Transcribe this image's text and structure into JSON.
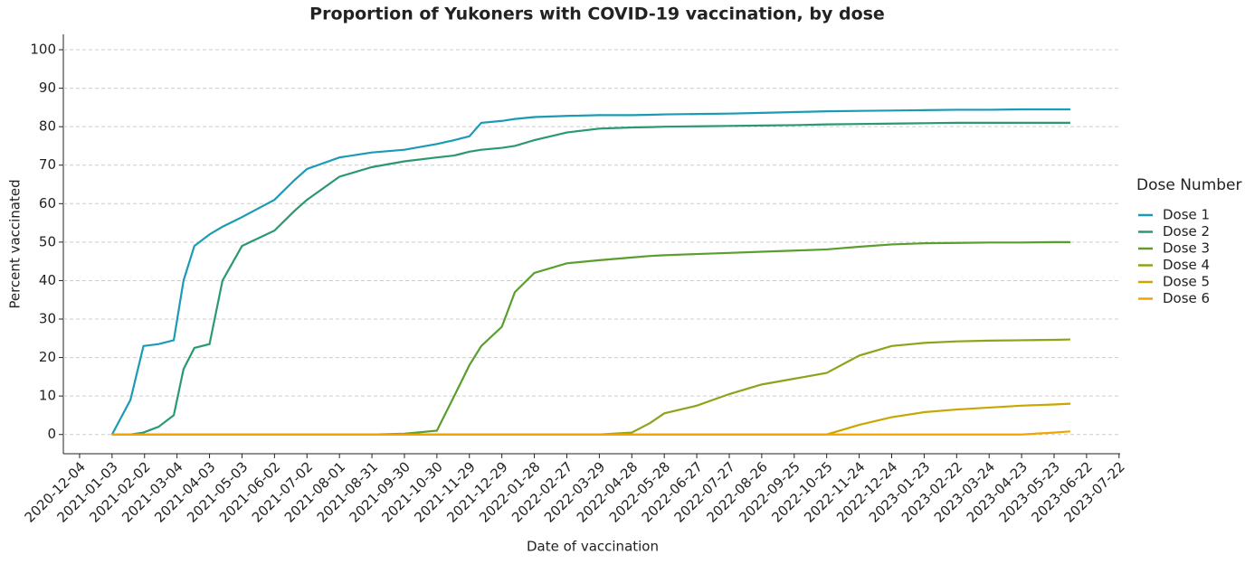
{
  "chart_data": {
    "type": "line",
    "title": "Proportion of Yukoners with COVID-19 vaccination, by dose",
    "x_label": "Date of vaccination",
    "y_label": "Percent vaccinated",
    "legend_title": "Dose Number",
    "legend_position": "right",
    "grid": true,
    "xlim": [
      "2020-11-19",
      "2023-07-23"
    ],
    "xticks": [
      "2020-12-04",
      "2021-01-03",
      "2021-02-02",
      "2021-03-04",
      "2021-04-03",
      "2021-05-03",
      "2021-06-02",
      "2021-07-02",
      "2021-08-01",
      "2021-08-31",
      "2021-09-30",
      "2021-10-30",
      "2021-11-29",
      "2021-12-29",
      "2022-01-28",
      "2022-02-27",
      "2022-03-29",
      "2022-04-28",
      "2022-05-28",
      "2022-06-27",
      "2022-07-27",
      "2022-08-26",
      "2022-09-25",
      "2022-10-25",
      "2022-11-24",
      "2022-12-24",
      "2023-01-23",
      "2023-02-22",
      "2023-03-24",
      "2023-04-23",
      "2023-05-23",
      "2023-06-22",
      "2023-07-22"
    ],
    "ylim": [
      -5,
      104
    ],
    "yticks": [
      0,
      10,
      20,
      30,
      40,
      50,
      60,
      70,
      80,
      90,
      100
    ],
    "x": [
      "2021-01-03",
      "2021-01-20",
      "2021-02-01",
      "2021-02-15",
      "2021-03-01",
      "2021-03-10",
      "2021-03-20",
      "2021-04-03",
      "2021-04-15",
      "2021-05-03",
      "2021-06-02",
      "2021-06-20",
      "2021-07-02",
      "2021-08-01",
      "2021-08-31",
      "2021-09-30",
      "2021-10-30",
      "2021-11-15",
      "2021-11-29",
      "2021-12-10",
      "2021-12-29",
      "2022-01-10",
      "2022-01-28",
      "2022-02-27",
      "2022-03-29",
      "2022-04-28",
      "2022-05-15",
      "2022-05-28",
      "2022-06-27",
      "2022-07-27",
      "2022-08-26",
      "2022-09-25",
      "2022-10-25",
      "2022-11-24",
      "2022-12-24",
      "2023-01-23",
      "2023-02-22",
      "2023-03-24",
      "2023-04-23",
      "2023-05-23",
      "2023-06-07"
    ],
    "series": [
      {
        "name": "Dose 1",
        "color": "#1a9bb5",
        "values": [
          0,
          9,
          23,
          23.5,
          24.5,
          40,
          49,
          52,
          54,
          56.5,
          61,
          66,
          69,
          72,
          73.3,
          74,
          75.5,
          76.5,
          77.5,
          81,
          81.5,
          82,
          82.5,
          82.8,
          83,
          83,
          83.1,
          83.2,
          83.3,
          83.4,
          83.6,
          83.8,
          84,
          84.1,
          84.2,
          84.3,
          84.4,
          84.4,
          84.5,
          84.5,
          84.5
        ]
      },
      {
        "name": "Dose 2",
        "color": "#2a9a6e",
        "values": [
          0,
          0,
          0.5,
          2,
          5,
          17,
          22.5,
          23.5,
          40,
          49,
          53,
          58,
          61,
          67,
          69.5,
          71,
          72,
          72.5,
          73.5,
          74,
          74.5,
          75,
          76.5,
          78.5,
          79.5,
          79.8,
          79.9,
          80,
          80.1,
          80.2,
          80.3,
          80.4,
          80.6,
          80.7,
          80.8,
          80.9,
          81,
          81,
          81,
          81,
          81
        ]
      },
      {
        "name": "Dose 3",
        "color": "#5a9e2e",
        "values": [
          0,
          0,
          0,
          0,
          0,
          0,
          0,
          0,
          0,
          0,
          0,
          0,
          0,
          0,
          0,
          0.2,
          1,
          10,
          18,
          23,
          28,
          37,
          42,
          44.5,
          45.3,
          46,
          46.4,
          46.6,
          46.9,
          47.2,
          47.5,
          47.8,
          48.1,
          48.8,
          49.4,
          49.7,
          49.8,
          49.9,
          49.9,
          50,
          50
        ]
      },
      {
        "name": "Dose 4",
        "color": "#8aa51a",
        "values": [
          0,
          0,
          0,
          0,
          0,
          0,
          0,
          0,
          0,
          0,
          0,
          0,
          0,
          0,
          0,
          0,
          0,
          0,
          0,
          0,
          0,
          0,
          0,
          0,
          0,
          0.5,
          3,
          5.5,
          7.5,
          10.5,
          13,
          14.5,
          16,
          20.5,
          23,
          23.8,
          24.2,
          24.4,
          24.5,
          24.6,
          24.7
        ]
      },
      {
        "name": "Dose 5",
        "color": "#c9a600",
        "values": [
          0,
          0,
          0,
          0,
          0,
          0,
          0,
          0,
          0,
          0,
          0,
          0,
          0,
          0,
          0,
          0,
          0,
          0,
          0,
          0,
          0,
          0,
          0,
          0,
          0,
          0,
          0,
          0,
          0,
          0,
          0,
          0,
          0,
          2.5,
          4.5,
          5.8,
          6.5,
          7,
          7.5,
          7.8,
          8
        ]
      },
      {
        "name": "Dose 6",
        "color": "#f0a500",
        "values": [
          0,
          0,
          0,
          0,
          0,
          0,
          0,
          0,
          0,
          0,
          0,
          0,
          0,
          0,
          0,
          0,
          0,
          0,
          0,
          0,
          0,
          0,
          0,
          0,
          0,
          0,
          0,
          0,
          0,
          0,
          0,
          0,
          0,
          0,
          0,
          0,
          0,
          0,
          0,
          0.5,
          0.8
        ]
      }
    ]
  }
}
